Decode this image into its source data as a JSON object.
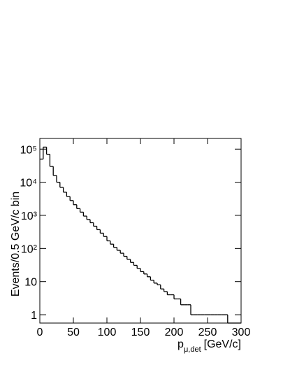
{
  "chart_data": {
    "type": "histogram",
    "xlabel": {
      "main": "p",
      "sub": "μ,det",
      "unit": "[GeV/c]"
    },
    "ylabel": "Events/0.5 GeV/c bin",
    "bins": [
      0,
      5,
      10,
      15,
      20,
      25,
      30,
      35,
      40,
      45,
      50,
      55,
      60,
      65,
      70,
      75,
      80,
      85,
      90,
      95,
      100,
      105,
      110,
      115,
      120,
      125,
      130,
      135,
      140,
      145,
      150,
      155,
      160,
      165,
      170,
      175,
      180,
      185,
      190,
      195,
      200,
      205,
      210,
      215,
      220,
      225,
      230,
      235,
      240,
      245,
      250,
      255,
      260,
      265,
      270,
      275,
      280,
      285,
      290,
      295,
      300
    ],
    "counts": [
      50000,
      115000,
      70000,
      30000,
      16000,
      10000,
      7000,
      5000,
      3700,
      2800,
      2100,
      1600,
      1250,
      950,
      750,
      600,
      470,
      370,
      290,
      230,
      170,
      135,
      108,
      88,
      72,
      58,
      47,
      38,
      31,
      25,
      20,
      17,
      14,
      11,
      9,
      8,
      6,
      5,
      4,
      4,
      3,
      3,
      2,
      2,
      2,
      1,
      1,
      1,
      1,
      1,
      1,
      1,
      1,
      1,
      1,
      1,
      0,
      0,
      0,
      0
    ],
    "color": "#000000",
    "xlim": [
      0,
      300
    ],
    "xticks": [
      0,
      50,
      100,
      150,
      200,
      250,
      300
    ],
    "ylim": [
      0.56,
      210000
    ],
    "log_y": true,
    "yticks": [
      1,
      10,
      {
        "value": 100,
        "label": "10²"
      },
      {
        "value": 1000,
        "label": "10³"
      },
      {
        "value": 10000,
        "label": "10⁴"
      },
      {
        "value": 100000,
        "label": "10⁵"
      }
    ],
    "grid": false
  }
}
